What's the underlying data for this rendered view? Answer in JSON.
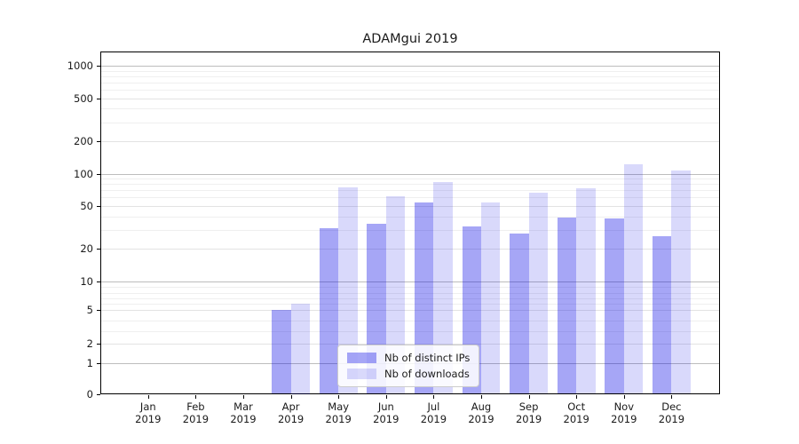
{
  "figure": {
    "title": "ADAMgui 2019",
    "background": "#ffffff"
  },
  "chart_data": {
    "type": "bar",
    "title": "ADAMgui 2019",
    "categories": [
      "Jan 2019",
      "Feb 2019",
      "Mar 2019",
      "Apr 2019",
      "May 2019",
      "Jun 2019",
      "Jul 2019",
      "Aug 2019",
      "Sep 2019",
      "Oct 2019",
      "Nov 2019",
      "Dec 2019"
    ],
    "series": [
      {
        "name": "Nb of distinct IPs",
        "color": "rgba(0,0,230,0.35)",
        "values": [
          0,
          0,
          0,
          5,
          31,
          34,
          54,
          32,
          28,
          39,
          38,
          26
        ]
      },
      {
        "name": "Nb of downloads",
        "color": "rgba(0,0,230,0.15)",
        "values": [
          0,
          0,
          0,
          6,
          75,
          62,
          84,
          54,
          66,
          73,
          121,
          106
        ]
      }
    ],
    "xlabel": "",
    "ylabel": "",
    "yscale": "log-like with 0 baseline",
    "yticks": [
      1000,
      500,
      200,
      100,
      50,
      20,
      10,
      5,
      2,
      1,
      0
    ],
    "ylim": [
      0,
      1400
    ],
    "grid": true,
    "legend_position": "lower center inside plot"
  },
  "legend": {
    "items": [
      {
        "label": "Nb of distinct IPs",
        "color": "rgba(0,0,230,0.35)"
      },
      {
        "label": "Nb of downloads",
        "color": "rgba(0,0,230,0.15)"
      }
    ]
  },
  "colors": {
    "bar_distinct_ips": "rgba(0,0,230,0.35)",
    "bar_downloads": "rgba(0,0,230,0.15)",
    "grid_major": "#bdbdbd",
    "grid_mid": "#e3e3e3",
    "grid_minor": "#efefef",
    "axis_line": "#000000",
    "text": "#1a1a1a",
    "legend_border": "#cccccc",
    "legend_background": "rgba(255,255,255,0.85)"
  }
}
